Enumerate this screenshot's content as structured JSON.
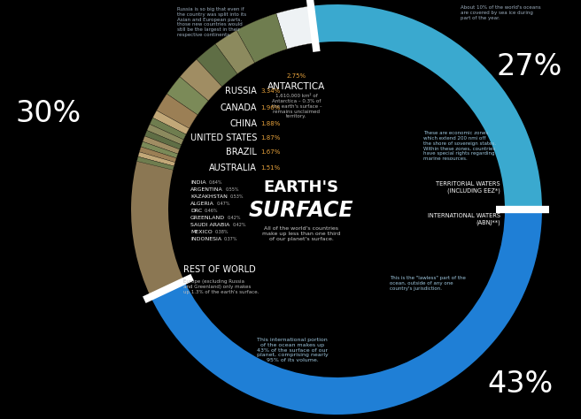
{
  "chart_data": {
    "type": "pie",
    "title": "EARTH'S SURFACE",
    "subtitle": "All of the world's countries\nmake up less than one third\nof our planet's surface.",
    "categories": [
      "TERRITORIAL WATERS\n(INCLUDING EEZ*)",
      "INTERNATIONAL WATERS\n(ABNJ**)",
      null
    ],
    "values": [
      27,
      43,
      30
    ],
    "value_labels": [
      "27%",
      "43%",
      "30%"
    ],
    "colors": [
      "#3aa9cf",
      "#1f7fd6",
      "#8b7753"
    ],
    "data_labels": true,
    "land_detail": {
      "categories": [
        "ANTARCTICA",
        "RUSSIA",
        "CANADA",
        "CHINA",
        "UNITED STATES",
        "BRAZIL",
        "AUSTRALIA",
        "INDIA",
        "ARGENTINA",
        "KAZAKHSTAN",
        "ALGERIA",
        "DRC",
        "GREENLAND",
        "SAUDI ARABIA",
        "MEXICO",
        "INDONESIA"
      ],
      "values": [
        2.75,
        3.34,
        1.96,
        1.88,
        1.87,
        1.67,
        1.51,
        0.64,
        0.55,
        0.53,
        0.47,
        0.46,
        0.42,
        0.42,
        0.38,
        0.37
      ],
      "value_labels": [
        "2.75%",
        "3.34%",
        "1.96%",
        "1.88%",
        "1.87%",
        "1.67%",
        "1.51%",
        "0.64%",
        "0.55%",
        "0.53%",
        "0.47%",
        "0.46%",
        "0.42%",
        "0.42%",
        "0.38%",
        "0.37%"
      ]
    },
    "annotations": {
      "antarctica_note": "1,610,000 km² of\nAntarctica – 0.3% of\nthe earth's surface –\nremains unclaimed\nterritory.",
      "russia_note": "Russia is so big that even if\nthe country was split into its\nAsian and European parts,\nthose new countries would\nstill be the largest in their\nrespective continents.",
      "sea_ice_note": "About 10% of the world's oceans\nare covered by sea ice during\npart of the year.",
      "eez_note": "These are economic zones\nwhich extend 200 nmi off\nthe shore of sovereign states.\nWithin these zones, countries\nhave special rights regarding\nmarine resources.",
      "lawless_note": "This is the \"lawless\" part of the\nocean, outside of any one\ncountry's jurisdiction.",
      "international_note": "This international portion\nof the ocean makes up\n43% of the surface of our\nplanet, comprising nearly\n95% of its volume.",
      "rest_of_world": "REST OF WORLD",
      "rest_of_world_note": "Europe (excluding Russia\nand Greenland) only makes\nup 1.3% of the earth's surface."
    }
  }
}
